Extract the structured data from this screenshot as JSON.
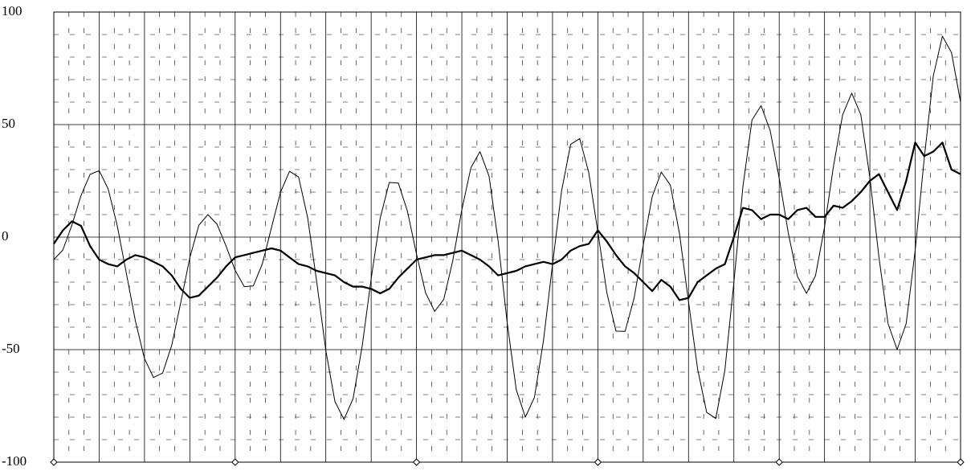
{
  "chart_data": {
    "type": "line",
    "categories": [
      null,
      null,
      null,
      null,
      null,
      null,
      null,
      null,
      null,
      null,
      null,
      null,
      null,
      null,
      null,
      null,
      null,
      null,
      null,
      null,
      null,
      null,
      null,
      null,
      null,
      null,
      null,
      null,
      null,
      null,
      null,
      null,
      null,
      null,
      null,
      null,
      null,
      null,
      null,
      null,
      null,
      null,
      null,
      null,
      null,
      null,
      null,
      null,
      null,
      null,
      null,
      null,
      null,
      null,
      null,
      null,
      null,
      null,
      null,
      null,
      null,
      null,
      null,
      null,
      null,
      null,
      null,
      null,
      null,
      null,
      null,
      null,
      null,
      null,
      null,
      null,
      null,
      null,
      null,
      null,
      null,
      null,
      null,
      null,
      null,
      null,
      null,
      null,
      null,
      null,
      null,
      null,
      null,
      null,
      null,
      null,
      null,
      null,
      null,
      null,
      null
    ],
    "series": [
      {
        "color": "#000000",
        "width": 1,
        "values": [
          -10,
          -5.7,
          5.4,
          18.5,
          27.9,
          29.5,
          21.4,
          5.0,
          -16,
          -37.3,
          -54,
          -62.4,
          -60.4,
          -48.1,
          -29,
          -9.2,
          5.3,
          10,
          5.7,
          -4,
          -14.8,
          -22,
          -21.7,
          -11.8,
          4.2,
          20,
          29.2,
          26.7,
          8.6,
          -20,
          -50.4,
          -73,
          -81,
          -71.8,
          -48.6,
          -18.6,
          8.5,
          24.3,
          24,
          11.5,
          -7.5,
          -24.8,
          -33,
          -27.7,
          -10.4,
          12.1,
          30.8,
          38,
          27.1,
          -1.8,
          -38,
          -67.8,
          -80,
          -71.3,
          -46,
          -12,
          20.5,
          41.2,
          43.8,
          28.6,
          2.3,
          -24.9,
          -41.8,
          -41.9,
          -27,
          -3.6,
          18,
          28.9,
          23.1,
          1.6,
          -28.7,
          -58.6,
          -77.9,
          -80.6,
          -59.3,
          -20,
          22.4,
          52,
          58.4,
          47.4,
          26.2,
          1.8,
          -17.4,
          -25,
          -17.1,
          4.6,
          31.8,
          54.4,
          64,
          54.4,
          26.4,
          -9,
          -38.4,
          -50,
          -38.4,
          -5.9,
          35,
          71.7,
          89.3,
          82,
          60
        ]
      },
      {
        "color": "#000000",
        "width": 2.2,
        "values": [
          -3,
          3,
          7,
          5,
          -4,
          -10,
          -12,
          -13,
          -10,
          -8,
          -9,
          -11,
          -13,
          -17,
          -23,
          -27,
          -26,
          -22,
          -18,
          -13,
          -9,
          -8,
          -7,
          -6,
          -5,
          -6,
          -9,
          -12,
          -13,
          -15,
          -16,
          -17,
          -20,
          -22,
          -22,
          -23,
          -25,
          -23,
          -18,
          -14,
          -10,
          -9,
          -8,
          -8,
          -7,
          -6,
          -8,
          -10,
          -13,
          -17,
          -16,
          -15,
          -13,
          -12,
          -11,
          -12,
          -10,
          -6,
          -4,
          -3,
          3,
          -2,
          -8,
          -13,
          -16,
          -20,
          -24,
          -19,
          -22,
          -28,
          -27,
          -20,
          -17,
          -14,
          -12,
          0,
          13,
          12,
          8,
          10,
          10,
          8,
          12,
          13,
          9,
          9,
          14,
          13,
          16,
          20,
          25,
          28,
          20,
          12,
          25,
          42,
          36,
          38,
          42,
          30,
          28
        ]
      }
    ],
    "ylim": [
      -100,
      100
    ],
    "yticks": [
      -100,
      -50,
      0,
      50,
      100
    ],
    "grid": true
  }
}
